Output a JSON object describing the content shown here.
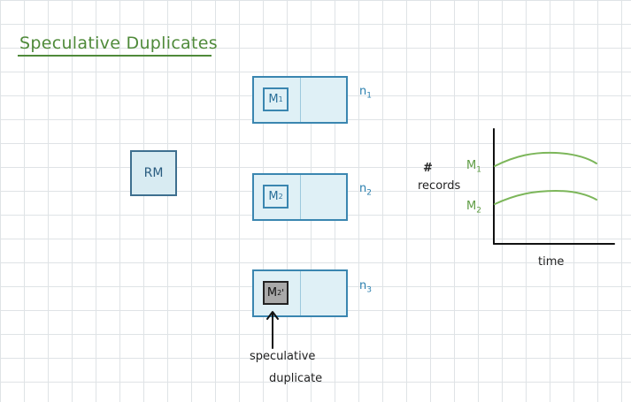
{
  "title": "Speculative Duplicates",
  "resource_manager": {
    "label": "RM"
  },
  "nodes": [
    {
      "label": "n",
      "sub": "1",
      "task_label": "M",
      "task_sub": "1",
      "task_sup": "",
      "speculative": false
    },
    {
      "label": "n",
      "sub": "2",
      "task_label": "M",
      "task_sub": "2",
      "task_sup": "",
      "speculative": false
    },
    {
      "label": "n",
      "sub": "3",
      "task_label": "M",
      "task_sub": "2",
      "task_sup": "'",
      "speculative": true
    }
  ],
  "annotation": {
    "line1": "speculative",
    "line2": "duplicate"
  },
  "colors": {
    "title": "#4f8a3a",
    "node_border": "#3a86b0",
    "node_fill": "#dff0f6",
    "rm_border": "#3e6f8f",
    "speculative_fill": "#a9a9a9",
    "series": "#7cb65a"
  },
  "chart": {
    "ylabel_line1": "#",
    "ylabel_line2": "records",
    "xlabel": "time",
    "series": [
      {
        "label": "M",
        "sub": "1"
      },
      {
        "label": "M",
        "sub": "2"
      }
    ]
  }
}
